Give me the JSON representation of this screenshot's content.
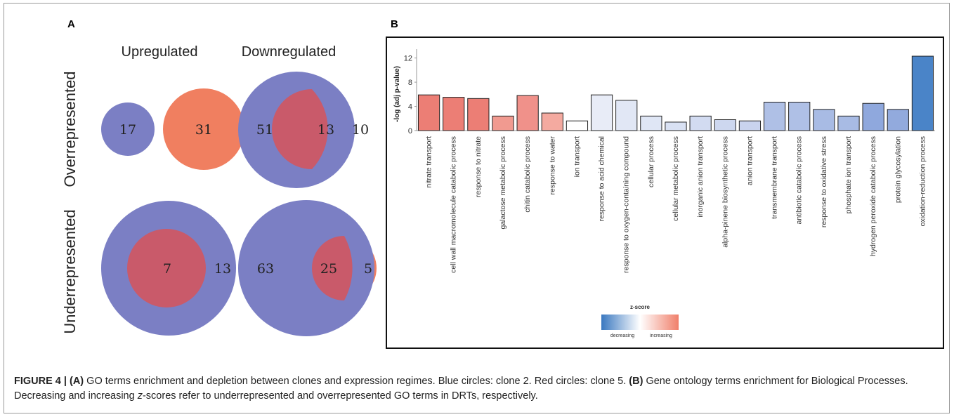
{
  "panel_a": {
    "letter": "A",
    "col_labels": [
      "Upregulated",
      "Downregulated"
    ],
    "row_labels": [
      "Overrepresented",
      "Underrepresented"
    ],
    "venns": [
      {
        "clone2_only": "17",
        "clone5_only": "31",
        "overlap": ""
      },
      {
        "clone2_only": "51",
        "clone5_only": "10",
        "overlap": "13"
      },
      {
        "clone2_only": "13",
        "clone5_only": "",
        "overlap": "7"
      },
      {
        "clone2_only": "63",
        "clone5_only": "5",
        "overlap": "25"
      }
    ],
    "colors": {
      "clone2": "#7b7fc4",
      "clone5": "#f07f60",
      "overlap": "#c95a6a"
    }
  },
  "panel_b": {
    "letter": "B"
  },
  "chart_data": {
    "type": "bar",
    "ylabel": "-log (adj p-value)",
    "ylim": [
      0,
      13
    ],
    "yticks": [
      0,
      4,
      8,
      12
    ],
    "categories": [
      "nitrate transport",
      "cell wall macromolecule catabolic process",
      "response to nitrate",
      "galactose metabolic process",
      "chitin catabolic process",
      "response to water",
      "ion transport",
      "response to acid chemical",
      "response to oxygen-containing compound",
      "cellular process",
      "cellular metabolic process",
      "inorganic anion transport",
      "alpha-pinene biosynthetic process",
      "anion transport",
      "transmembrane transport",
      "antibiotic catabolic process",
      "response to oxidative stress",
      "phosphate ion transport",
      "hydrogen peroxide catabolic process",
      "protein glycosylation",
      "oxidation-reduction process"
    ],
    "values": [
      5.9,
      5.5,
      5.3,
      2.4,
      5.8,
      2.9,
      1.6,
      5.9,
      5.0,
      2.4,
      1.4,
      2.4,
      1.8,
      1.6,
      4.7,
      4.7,
      3.5,
      2.4,
      4.5,
      3.5,
      12.3
    ],
    "colors": [
      "#ec7e75",
      "#ec7e75",
      "#ec7e75",
      "#f19a90",
      "#f0918a",
      "#f4aaa0",
      "#ffffff",
      "#e8ecf7",
      "#e1e7f5",
      "#dfe6f5",
      "#d9e1f3",
      "#d2dbf1",
      "#cdd7ef",
      "#c9d3ee",
      "#afc0e6",
      "#afc0e6",
      "#a8bbe4",
      "#a8bbe4",
      "#8fa8dd",
      "#92aadd",
      "#4a84c8"
    ],
    "legend": {
      "title": "z-score",
      "low_label": "decreasing",
      "high_label": "increasing",
      "low_color": "#3a78c0",
      "mid_color": "#ffffff",
      "high_color": "#f07f6a"
    }
  },
  "caption": {
    "figure_label": "FIGURE 4 |",
    "a_label": "(A)",
    "a_text": "GO terms enrichment and depletion between clones and expression regimes. Blue circles: clone 2. Red circles: clone 5.",
    "b_label": "(B)",
    "b_text_1": "Gene ontology terms enrichment for Biological Processes. Decreasing and increasing",
    "z_italic": "z",
    "b_text_2": "-scores refer to underrepresented and overrepresented GO terms in DRTs, respectively."
  }
}
